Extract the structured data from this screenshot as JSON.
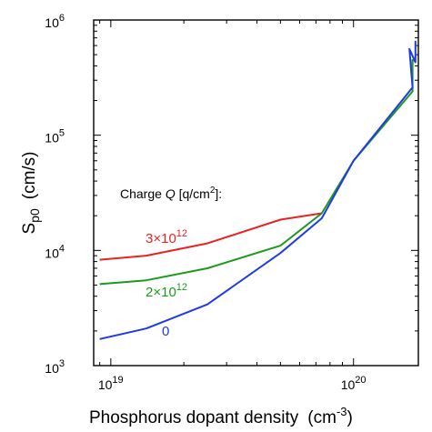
{
  "chart_data": {
    "type": "line",
    "xlabel": {
      "main": "Phosphorus dopant density",
      "unit_prefix": "(cm",
      "unit_exp": "-3",
      "unit_suffix": ")"
    },
    "ylabel": {
      "main": "S",
      "sub": "p0",
      "unit": "(cm/s)"
    },
    "x_scale": "log",
    "y_scale": "log",
    "xlim": [
      8.5e+18,
      1.85e+20
    ],
    "ylim": [
      1000,
      1000000
    ],
    "x_ticks": [
      {
        "value": 1e+19,
        "base": "10",
        "exp": "19"
      },
      {
        "value": 1e+20,
        "base": "10",
        "exp": "20"
      }
    ],
    "y_ticks": [
      {
        "value": 1000,
        "base": "10",
        "exp": "3"
      },
      {
        "value": 10000,
        "base": "10",
        "exp": "4"
      },
      {
        "value": 100000,
        "base": "10",
        "exp": "5"
      },
      {
        "value": 1000000,
        "base": "10",
        "exp": "6"
      }
    ],
    "legend_title": {
      "prefix": "Charge ",
      "var": "Q",
      "mid": " [q/cm",
      "exp": "2",
      "suffix": "]:"
    },
    "series": [
      {
        "label": {
          "base": "3×10",
          "exp": "12"
        },
        "color": "#e8231f",
        "x": [
          9e+18,
          1.4e+19,
          2.5e+19,
          5e+19,
          7.4e+19
        ],
        "y": [
          8300,
          9000,
          11500,
          18500,
          21000
        ]
      },
      {
        "label": {
          "base": "2×10",
          "exp": "12"
        },
        "color": "#1c9a1c",
        "x": [
          9e+18,
          1.4e+19,
          2.5e+19,
          5e+19,
          7.4e+19,
          1e+20,
          1.75e+20,
          1.75e+20,
          1.8e+20
        ],
        "y": [
          5100,
          5500,
          7000,
          11000,
          21000,
          60000,
          240000,
          450000,
          440000
        ]
      },
      {
        "label": {
          "base": "0",
          "exp": ""
        },
        "color": "#1f3be8",
        "x": [
          9e+18,
          1.4e+19,
          2.5e+19,
          5e+19,
          7.4e+19,
          1e+20,
          1.75e+20,
          1.7e+20,
          1.8e+20,
          1.8e+20
        ],
        "y": [
          1700,
          2100,
          3400,
          9500,
          19000,
          60000,
          260000,
          560000,
          430000,
          660000
        ]
      }
    ]
  }
}
